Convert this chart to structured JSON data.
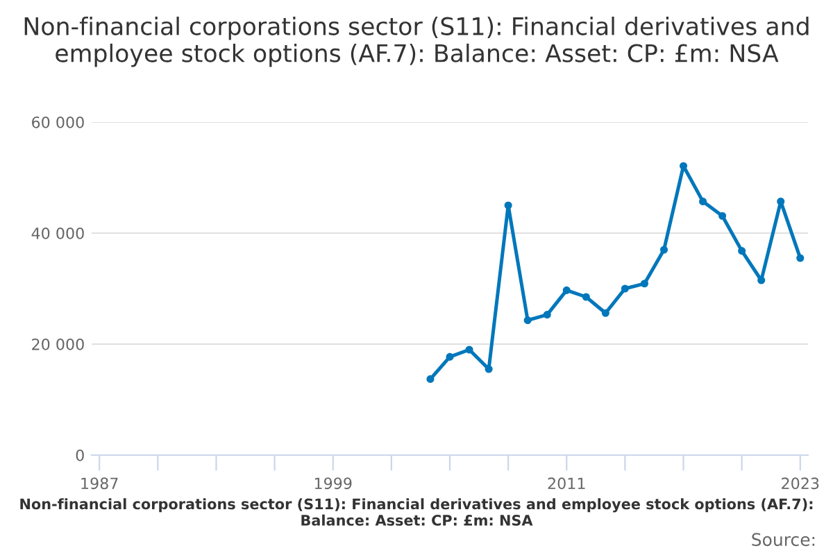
{
  "chart_data": {
    "type": "line",
    "title": "Non-financial corporations sector (S11): Financial derivatives and employee stock options (AF.7): Balance: Asset: CP: £m: NSA",
    "xlabel": "Non-financial corporations sector (S11): Financial derivatives and employee stock options (AF.7): Balance: Asset: CP: £m: NSA",
    "annotations": [
      "Source:"
    ],
    "x": [
      2004,
      2005,
      2006,
      2007,
      2008,
      2009,
      2010,
      2011,
      2012,
      2013,
      2014,
      2015,
      2016,
      2017,
      2018,
      2019,
      2020,
      2021,
      2022,
      2023
    ],
    "series": [
      {
        "color": "#0077bb",
        "values": [
          13700,
          17700,
          19000,
          15500,
          45000,
          24300,
          25300,
          29700,
          28500,
          25600,
          30000,
          30900,
          37000,
          52100,
          45700,
          43100,
          36800,
          31500,
          45700,
          35500
        ]
      }
    ],
    "xlim": [
      1986.6,
      2023.4
    ],
    "xticks": [
      1987,
      {
        "value": 1990,
        "label": null
      },
      {
        "value": 1993,
        "label": null
      },
      {
        "value": 1996,
        "label": null
      },
      1999,
      {
        "value": 2002,
        "label": null
      },
      {
        "value": 2005,
        "label": null
      },
      {
        "value": 2008,
        "label": null
      },
      2011,
      {
        "value": 2014,
        "label": null
      },
      {
        "value": 2017,
        "label": null
      },
      {
        "value": 2020,
        "label": null
      },
      2023
    ],
    "ylim": [
      0,
      60000
    ],
    "yticks": [
      0,
      {
        "value": 20000,
        "label": "20 000"
      },
      {
        "value": 40000,
        "label": "40 000"
      },
      {
        "value": 60000,
        "label": "60 000"
      }
    ],
    "grid": "y",
    "marker": "circle",
    "line_style": "solid",
    "legend": false
  }
}
